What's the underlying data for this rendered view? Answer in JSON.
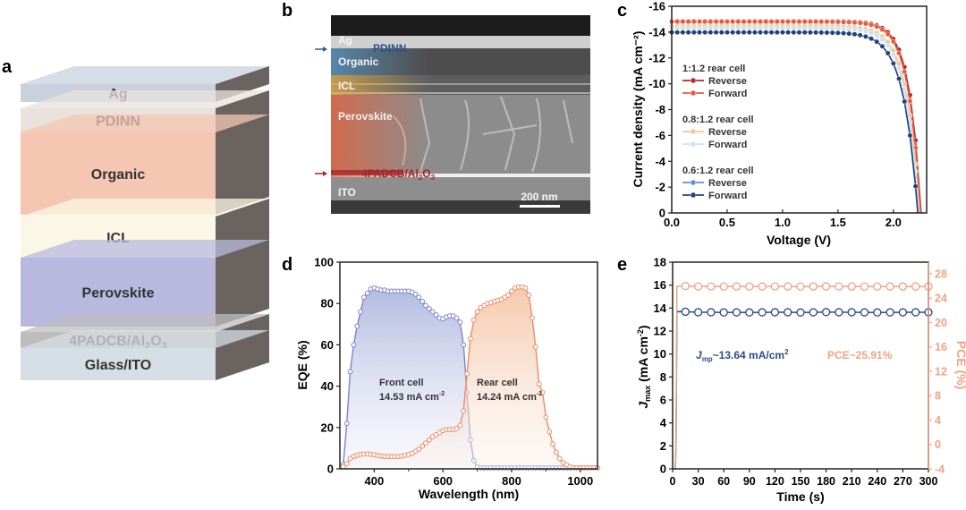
{
  "panels": {
    "a": {
      "label": "a",
      "layers": [
        {
          "name": "Ag",
          "color": "#c9d1df",
          "sub": ""
        },
        {
          "name": "PDINN",
          "color": "#e9e1dc",
          "sub": ""
        },
        {
          "name": "Organic",
          "color": "#f5c6b2",
          "sub": ""
        },
        {
          "name": "ICL",
          "color": "#fbf7e6",
          "sub": ""
        },
        {
          "name": "Perovskite",
          "color": "#b9b9df",
          "sub": ""
        },
        {
          "name": "4PADCB/Al",
          "color": "#bdbdbd",
          "sub": "2",
          "tail": "O",
          "sub2": "3"
        },
        {
          "name": "Glass/ITO",
          "color": "#d5dde5",
          "sub": ""
        }
      ]
    },
    "b": {
      "label": "b",
      "layer_labels": [
        "Ag",
        "Organic",
        "ICL",
        "Perovskite",
        "ITO"
      ],
      "pdinn_label": "PDINN",
      "interface_label": {
        "main": "4PADCB/Al",
        "sub1": "2",
        "mid": "O",
        "sub2": "3"
      },
      "scale_bar": "200 nm"
    }
  },
  "chart_data": [
    {
      "panel": "c",
      "type": "line",
      "title": "",
      "xlabel": "Voltage (V)",
      "ylabel": "Current density (mA cm⁻²)",
      "xlim": [
        0,
        2.3
      ],
      "ylim": [
        0,
        -16
      ],
      "xticks": [
        "0.0",
        "0.5",
        "1.0",
        "1.5",
        "2.0"
      ],
      "xtick_values": [
        0,
        0.5,
        1.0,
        1.5,
        2.0
      ],
      "yticks": [
        "0",
        "-2",
        "-4",
        "-6",
        "-8",
        "-10",
        "-12",
        "-14",
        "-16"
      ],
      "ytick_values": [
        0,
        -2,
        -4,
        -6,
        -8,
        -10,
        -12,
        -14,
        -16
      ],
      "legend_groups": [
        {
          "title": "1:1.2 rear cell",
          "entries": [
            {
              "name": "Reverse",
              "color": "#b3262b"
            },
            {
              "name": "Forward",
              "color": "#e85a40"
            }
          ]
        },
        {
          "title": "0.8:1.2 rear cell",
          "entries": [
            {
              "name": "Reverse",
              "color": "#f3c78c"
            },
            {
              "name": "Forward",
              "color": "#cde2f3"
            }
          ]
        },
        {
          "title": "0.6:1.2 rear cell",
          "entries": [
            {
              "name": "Reverse",
              "color": "#5d92d0"
            },
            {
              "name": "Forward",
              "color": "#22427c"
            }
          ]
        }
      ],
      "series": [
        {
          "name": "1:1.2 Reverse",
          "color": "#b3262b",
          "jsc": -14.85,
          "voc": 2.25,
          "knee": 1.85,
          "curv": 0.105
        },
        {
          "name": "1:1.2 Forward",
          "color": "#e85a40",
          "jsc": -14.8,
          "voc": 2.245,
          "knee": 1.85,
          "curv": 0.108
        },
        {
          "name": "0.8:1.2 Reverse",
          "color": "#f3c78c",
          "jsc": -14.45,
          "voc": 2.235,
          "knee": 1.8,
          "curv": 0.115
        },
        {
          "name": "0.8:1.2 Forward",
          "color": "#cde2f3",
          "jsc": -14.3,
          "voc": 2.23,
          "knee": 1.78,
          "curv": 0.118
        },
        {
          "name": "0.6:1.2 Reverse",
          "color": "#5d92d0",
          "jsc": -14.0,
          "voc": 2.22,
          "knee": 1.72,
          "curv": 0.125
        },
        {
          "name": "0.6:1.2 Forward",
          "color": "#22427c",
          "jsc": -13.98,
          "voc": 2.22,
          "knee": 1.72,
          "curv": 0.125
        }
      ]
    },
    {
      "panel": "d",
      "type": "area",
      "title": "",
      "xlabel": "Wavelength (nm)",
      "ylabel": "EQE (%)",
      "xlim": [
        300,
        1050
      ],
      "ylim": [
        0,
        100
      ],
      "xticks": [
        "400",
        "600",
        "800",
        "1000"
      ],
      "xtick_values": [
        400,
        600,
        800,
        1000
      ],
      "yticks": [
        "0",
        "20",
        "40",
        "60",
        "80",
        "100"
      ],
      "ytick_values": [
        0,
        20,
        40,
        60,
        80,
        100
      ],
      "annotations": [
        {
          "title": "Front cell",
          "value": "14.53 mA cm",
          "sup": "-2",
          "color": "#333333"
        },
        {
          "title": "Rear cell",
          "value": "14.24 mA cm",
          "sup": "-2",
          "color": "#333333"
        }
      ],
      "series": [
        {
          "name": "Front cell",
          "color": "#7c84cf",
          "fill": "#a9b2dc",
          "x": [
            310,
            320,
            330,
            340,
            350,
            360,
            370,
            380,
            390,
            400,
            410,
            420,
            430,
            440,
            450,
            460,
            470,
            480,
            490,
            500,
            510,
            520,
            530,
            540,
            550,
            560,
            570,
            580,
            590,
            600,
            610,
            620,
            630,
            640,
            650,
            660,
            670,
            680,
            690,
            700,
            710,
            720,
            730,
            740,
            750,
            760,
            770,
            780,
            790,
            800,
            810,
            820,
            830,
            840,
            850,
            860,
            870,
            880,
            890,
            900,
            910,
            920,
            930,
            940,
            950,
            960,
            970,
            980,
            990,
            1000,
            1010,
            1020,
            1030,
            1040,
            1050
          ],
          "y": [
            2,
            22,
            47,
            60,
            69,
            76,
            83,
            85,
            87,
            87.5,
            87,
            86.5,
            86.5,
            86,
            86,
            86,
            86,
            86,
            86,
            86,
            85.5,
            84.5,
            83,
            81,
            79,
            77.5,
            76,
            74.5,
            73,
            72.5,
            73.5,
            74,
            74,
            73,
            71,
            60,
            37,
            14,
            4,
            1,
            0.5,
            0.5,
            0.5,
            0.5,
            0.5,
            0.5,
            0.5,
            0.5,
            0.5,
            0.5,
            0.5,
            0.5,
            0.5,
            0.5,
            0.5,
            0.5,
            0.5,
            0.5,
            0.5,
            0.5,
            0.5,
            0.5,
            0.5,
            0.5,
            0.5,
            0.5,
            0.5,
            0.5,
            0.5,
            0.5,
            0.5,
            0.5,
            0.5,
            0.5,
            0.5
          ]
        },
        {
          "name": "Rear cell",
          "color": "#ee8a66",
          "fill": "#f3c3a6",
          "x": [
            310,
            320,
            330,
            340,
            350,
            360,
            370,
            380,
            390,
            400,
            410,
            420,
            430,
            440,
            450,
            460,
            470,
            480,
            490,
            500,
            510,
            520,
            530,
            540,
            550,
            560,
            570,
            580,
            590,
            600,
            610,
            620,
            630,
            640,
            650,
            660,
            670,
            680,
            690,
            700,
            710,
            720,
            730,
            740,
            750,
            760,
            770,
            780,
            790,
            800,
            810,
            820,
            830,
            840,
            850,
            860,
            870,
            880,
            890,
            900,
            910,
            920,
            930,
            940,
            950,
            960,
            970,
            980,
            990,
            1000,
            1010,
            1020,
            1030,
            1040,
            1050
          ],
          "y": [
            1,
            2.5,
            5,
            6,
            6.5,
            7,
            7.2,
            7.2,
            7,
            6.8,
            6.5,
            6.2,
            6,
            6,
            6,
            6,
            6,
            6.2,
            6.5,
            7,
            7.5,
            8.5,
            9.5,
            11,
            12.5,
            14,
            15.5,
            16.5,
            17.5,
            18.5,
            19,
            19,
            19,
            19.5,
            21,
            28,
            46,
            63,
            72,
            76,
            78,
            79,
            80,
            80.5,
            81,
            81.5,
            82,
            83,
            84,
            86,
            87.5,
            88,
            88,
            87.5,
            84,
            73,
            59,
            41,
            37,
            25,
            18,
            12,
            8,
            5,
            3,
            2,
            1,
            0.5,
            0.5,
            0.5,
            0.5,
            0.5,
            0.5,
            0.5,
            0.5
          ]
        }
      ]
    },
    {
      "panel": "e",
      "type": "line",
      "title": "",
      "xlabel": "Time (s)",
      "ylabel": {
        "main": "J",
        "sub": "max",
        "rest": " (mA cm",
        "sup": "-2",
        "end": ")"
      },
      "ylabel2": "PCE (%)",
      "xlim": [
        0,
        300
      ],
      "ylim": [
        0,
        18
      ],
      "ylim2": [
        -4,
        29.9
      ],
      "xticks": [
        "0",
        "30",
        "60",
        "90",
        "120",
        "150",
        "180",
        "210",
        "240",
        "270",
        "300"
      ],
      "xtick_values": [
        0,
        30,
        60,
        90,
        120,
        150,
        180,
        210,
        240,
        270,
        300
      ],
      "yticks": [
        "0",
        "2",
        "4",
        "6",
        "8",
        "10",
        "12",
        "14",
        "16",
        "18"
      ],
      "ytick_values": [
        0,
        2,
        4,
        6,
        8,
        10,
        12,
        14,
        16,
        18
      ],
      "yticks2": [
        "-4",
        "0",
        "4",
        "8",
        "12",
        "16",
        "20",
        "24",
        "28"
      ],
      "ytick2_values": [
        -4,
        0,
        4,
        8,
        12,
        16,
        20,
        24,
        28
      ],
      "annotations": [
        {
          "main": "J",
          "sub": "mp",
          "text": "~13.64 mA/cm",
          "sup": "2",
          "color": "#2d4a8a"
        },
        {
          "text": "PCE~25.91%",
          "color": "#f0a382"
        }
      ],
      "series": [
        {
          "name": "Jmp",
          "axis": "left",
          "color": "#2d4a8a",
          "x": [
            0,
            3,
            4,
            5,
            15,
            30,
            45,
            60,
            75,
            90,
            105,
            120,
            135,
            150,
            165,
            180,
            195,
            210,
            225,
            240,
            255,
            270,
            285,
            300
          ],
          "y": [
            0,
            0,
            1.9,
            13.7,
            13.68,
            13.64,
            13.64,
            13.62,
            13.63,
            13.62,
            13.63,
            13.64,
            13.64,
            13.62,
            13.63,
            13.65,
            13.64,
            13.64,
            13.63,
            13.62,
            13.63,
            13.63,
            13.64,
            13.64
          ],
          "markers_from_index": 4
        },
        {
          "name": "PCE",
          "axis": "right",
          "color": "#f0a382",
          "x": [
            0,
            3,
            4,
            5,
            15,
            30,
            45,
            60,
            75,
            90,
            105,
            120,
            135,
            150,
            165,
            180,
            195,
            210,
            225,
            240,
            255,
            270,
            285,
            300
          ],
          "y": [
            -4,
            -4,
            0,
            25.95,
            25.98,
            25.92,
            25.92,
            25.9,
            25.91,
            25.9,
            25.91,
            25.92,
            25.91,
            25.9,
            25.91,
            25.93,
            25.92,
            25.91,
            25.9,
            25.9,
            25.91,
            25.91,
            25.91,
            25.91
          ],
          "markers_from_index": 4
        }
      ]
    }
  ],
  "panel_labels": {
    "c": "c",
    "d": "d",
    "e": "e"
  }
}
